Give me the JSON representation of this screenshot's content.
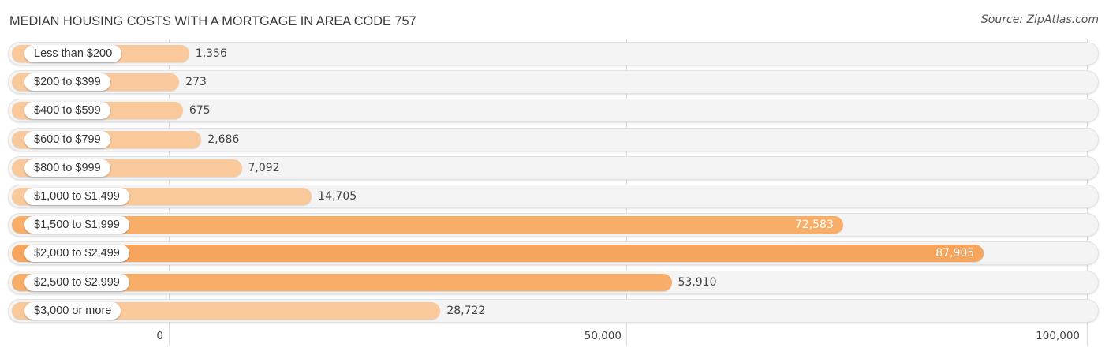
{
  "title": "MEDIAN HOUSING COSTS WITH A MORTGAGE IN AREA CODE 757",
  "source": "Source: ZipAtlas.com",
  "colors": {
    "bar_light": "#f9c89b",
    "bar_mid": "#f8b373",
    "bar_strong": "#f7a55c",
    "track": "#f4f4f4"
  },
  "axis": {
    "ticks": [
      "0",
      "50,000",
      "100,000"
    ]
  },
  "rows": [
    {
      "label": "Less than $200",
      "value_label": "1,356"
    },
    {
      "label": "$200 to $399",
      "value_label": "273"
    },
    {
      "label": "$400 to $599",
      "value_label": "675"
    },
    {
      "label": "$600 to $799",
      "value_label": "2,686"
    },
    {
      "label": "$800 to $999",
      "value_label": "7,092"
    },
    {
      "label": "$1,000 to $1,499",
      "value_label": "14,705"
    },
    {
      "label": "$1,500 to $1,999",
      "value_label": "72,583"
    },
    {
      "label": "$2,000 to $2,499",
      "value_label": "87,905"
    },
    {
      "label": "$2,500 to $2,999",
      "value_label": "53,910"
    },
    {
      "label": "$3,000 or more",
      "value_label": "28,722"
    }
  ],
  "chart_data": {
    "type": "bar",
    "orientation": "horizontal",
    "title": "MEDIAN HOUSING COSTS WITH A MORTGAGE IN AREA CODE 757",
    "categories": [
      "Less than $200",
      "$200 to $399",
      "$400 to $599",
      "$600 to $799",
      "$800 to $999",
      "$1,000 to $1,499",
      "$1,500 to $1,999",
      "$2,000 to $2,499",
      "$2,500 to $2,999",
      "$3,000 or more"
    ],
    "values": [
      1356,
      273,
      675,
      2686,
      7092,
      14705,
      72583,
      87905,
      53910,
      28722
    ],
    "xlabel": "",
    "ylabel": "",
    "xlim": [
      0,
      100000
    ],
    "xticks": [
      "0",
      "50,000",
      "100,000"
    ],
    "grid": true,
    "legend": null,
    "source": "Source: ZipAtlas.com"
  }
}
